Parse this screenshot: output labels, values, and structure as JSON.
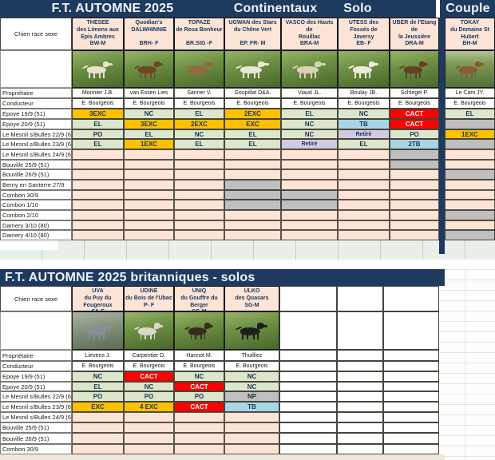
{
  "colors": {
    "navy": "#1f3a5f",
    "peach": "#fce4d6",
    "green": "#dce6cb",
    "orange": "#ffc000",
    "red": "#fe0000",
    "blue": "#a9d6e6",
    "purple": "#d2c9e2",
    "gray": "#bfbfbf",
    "band_green": "#e9f0e9",
    "band_bottom": "#ece8dd"
  },
  "table1": {
    "title": "F.T. AUTOMNE 2025",
    "groups": [
      {
        "label": "Continentaux"
      },
      {
        "label": "Solo"
      },
      {
        "label": "Couple"
      }
    ],
    "corner": "Chien race sexe",
    "owner_label": "Propriétaire",
    "handler_label": "Conducteur",
    "events": [
      "Epoye 19/9  (51)",
      "Epoye  20/9 (51)",
      "Le Mesnil s/Bulles 22/9 (60)",
      "Le Mesnil s/Bulles 23/9 (60)",
      "Le Mesnil s/Bulles 24/9 (60)",
      "Bouville 25/9  (51)",
      "Bouville 26/9  (51)",
      "Berny en Santerre 27/9",
      "Combon 30/9",
      "Combon 1/10",
      "Combon 2/10",
      "Damery 3/10 (80)",
      "Damery 4/10 (80)"
    ],
    "dogs": [
      {
        "name": "THESEE\ndes Limons aux\nEpis Ambres",
        "code": "BW-M",
        "owner": "Monnier J.B.",
        "handler": "E. Bourgeois",
        "photo": "field-green",
        "dog_color": "#e9e2d0",
        "results": [
          {
            "v": "3EXC",
            "c": "exc"
          },
          {
            "v": "EL",
            "c": "ok"
          },
          {
            "v": "PO",
            "c": "ok"
          },
          {
            "v": "EL",
            "c": "ok"
          },
          {},
          {},
          {},
          {},
          {},
          {},
          {},
          {},
          {}
        ]
      },
      {
        "name": "Quodian's\nDALWHINNIE",
        "code": "BRH- F",
        "owner": "van Essen Lies",
        "handler": "E. Bourgeois",
        "photo": "field-green",
        "dog_color": "#6e4526",
        "results": [
          {
            "v": "NC",
            "c": "ok"
          },
          {
            "v": "3EXC",
            "c": "exc"
          },
          {
            "v": "EL",
            "c": "ok"
          },
          {
            "v": "1EXC",
            "c": "exc"
          },
          {},
          {},
          {},
          {},
          {},
          {},
          {},
          {},
          {}
        ]
      },
      {
        "name": "TOPAZE\nde Rosa Bonheur",
        "code": "BR.StG -F",
        "owner": "Sanner V.",
        "handler": "E. Bourgeois",
        "photo": "field-green",
        "dog_color": "#96683f",
        "results": [
          {
            "v": "EL",
            "c": "ok"
          },
          {
            "v": "2EXC",
            "c": "exc"
          },
          {
            "v": "NC",
            "c": "ok"
          },
          {
            "v": "EL",
            "c": "ok"
          },
          {},
          {},
          {},
          {},
          {},
          {},
          {},
          {},
          {}
        ]
      },
      {
        "name": "UGWAN des Stars\ndu Chêne Vert",
        "code": "EP. FR- M",
        "owner": "Goupillat D&A.",
        "handler": "E. Bourgeois",
        "photo": "field-green",
        "dog_color": "#ece6d8",
        "results": [
          {
            "v": "2EXC",
            "c": "exc"
          },
          {
            "v": "EXC",
            "c": "exc"
          },
          {
            "v": "EL",
            "c": "ok"
          },
          {
            "v": "EL",
            "c": "ok"
          },
          {},
          {},
          {},
          {
            "c": "off"
          },
          {
            "c": "off"
          },
          {
            "c": "off"
          },
          {},
          {},
          {}
        ]
      },
      {
        "name": "VASCO des Hauts de\nRouillac",
        "code": "BRA-M",
        "owner": "Viaud JL.",
        "handler": "E. Bourgeois",
        "photo": "field-green",
        "dog_color": "#ddd0b8",
        "results": [
          {
            "v": "EL",
            "c": "ok"
          },
          {
            "v": "NC",
            "c": "ok"
          },
          {
            "v": "NC",
            "c": "ok"
          },
          {
            "v": "Retiré",
            "c": "ret"
          },
          {},
          {},
          {},
          {},
          {
            "c": "off"
          },
          {
            "c": "off"
          },
          {},
          {},
          {}
        ]
      },
      {
        "name": "UTESS des\nFossés de\nJaversy",
        "code": "EB- F",
        "owner": "Boulay JB.",
        "handler": "E. Bourgeois",
        "photo": "field-green",
        "dog_color": "#f0ead8",
        "results": [
          {
            "v": "NC",
            "c": "ok"
          },
          {
            "v": "TB",
            "c": "tb"
          },
          {
            "v": "Retiré",
            "c": "ret"
          },
          {
            "v": "EL",
            "c": "ok"
          },
          {},
          {},
          {},
          {},
          {},
          {},
          {},
          {},
          {}
        ]
      },
      {
        "name": "UBER de l'Etang de\nla Jeussière",
        "code": "DRA-M",
        "owner": "Schlegel P.",
        "handler": "E. Bourgeois",
        "photo": "field-green",
        "dog_color": "#63401f",
        "results": [
          {
            "v": "CACT",
            "c": "cact"
          },
          {
            "v": "CACT",
            "c": "cact"
          },
          {
            "v": "PO",
            "c": "ok"
          },
          {
            "v": "2TB",
            "c": "tb"
          },
          {
            "c": "off"
          },
          {
            "c": "off"
          },
          {},
          {},
          {},
          {},
          {},
          {},
          {}
        ]
      },
      {
        "name": "TOKAY\ndu Domaine St\nHubert",
        "code": "BH-M",
        "owner": "Le Cam JY.",
        "handler": "E. Bourgeois",
        "photo": "field-green-sky",
        "dog_color": "#8a5a30",
        "results": [
          {
            "v": "EL",
            "c": "ok"
          },
          {
            "c": "off"
          },
          {
            "v": "1EXC",
            "c": "exc"
          },
          {
            "c": "off"
          },
          {},
          {},
          {
            "c": "off"
          },
          {},
          {},
          {},
          {
            "c": "off"
          },
          {},
          {
            "c": "off"
          }
        ]
      }
    ]
  },
  "table2": {
    "title": "F.T.  AUTOMNE 2025   britanniques - solos",
    "corner": "Chien race sexe",
    "owner_label": "Propriétaire",
    "handler_label": "Conducteur",
    "events": [
      "Epoye 19/9  (51)",
      "Epoye  20/9 (51)",
      "Le Mesnil s/Bulles 22/9 (60)",
      "Le Mesnil s/Bulles 23/9 (60)",
      "Le Mesnil s/Bulles 24/9 (60)",
      "Bouville 25/9  (51)",
      "Bouville 26/9  (51)",
      "Combon 30/9"
    ],
    "dogs": [
      {
        "name": "UVA\ndu Puy du\nFougeroux",
        "code": "SA-F",
        "owner": "Lievens J.",
        "handler": "E. Bourgeois",
        "photo": "field-gray",
        "dog_color": "#87909a",
        "results": [
          {
            "v": "NC",
            "c": "ok"
          },
          {
            "v": "EL",
            "c": "ok"
          },
          {
            "v": "PO",
            "c": "ok"
          },
          {
            "v": "EXC",
            "c": "exc"
          },
          {},
          {},
          {},
          {}
        ]
      },
      {
        "name": "UDINE\ndu Bois de l'Ubac",
        "code": "P- F",
        "owner": "Carpentier D.",
        "handler": "E. Bourgeois",
        "photo": "field-green",
        "dog_color": "#d9d6cc",
        "results": [
          {
            "v": "CACT",
            "c": "cact"
          },
          {
            "v": "NC",
            "c": "ok"
          },
          {
            "v": "PO",
            "c": "ok"
          },
          {
            "v": "4 EXC",
            "c": "exc"
          },
          {},
          {},
          {},
          {}
        ]
      },
      {
        "name": "UNIQ\ndu Gouffre du Berger",
        "code": "SG-M",
        "owner": "Hannot M.",
        "handler": "E. Bourgeois",
        "photo": "field-green",
        "dog_color": "#382b20",
        "results": [
          {
            "v": "NC",
            "c": "ok"
          },
          {
            "v": "CACT",
            "c": "cact"
          },
          {
            "v": "PO",
            "c": "ok"
          },
          {
            "v": "CACT",
            "c": "cact"
          },
          {},
          {},
          {},
          {}
        ]
      },
      {
        "name": "ULKO\ndes Quasars",
        "code": "SG-M",
        "owner": "Thuilliez",
        "handler": "E. Bourgeois",
        "photo": "field-green",
        "dog_color": "#1d1d1d",
        "results": [
          {
            "v": "NC",
            "c": "ok"
          },
          {
            "v": "NC",
            "c": "ok"
          },
          {
            "v": "NP",
            "c": "np"
          },
          {
            "v": "TB",
            "c": "tb"
          },
          {},
          {},
          {},
          {}
        ]
      }
    ],
    "filler_columns": 3
  }
}
